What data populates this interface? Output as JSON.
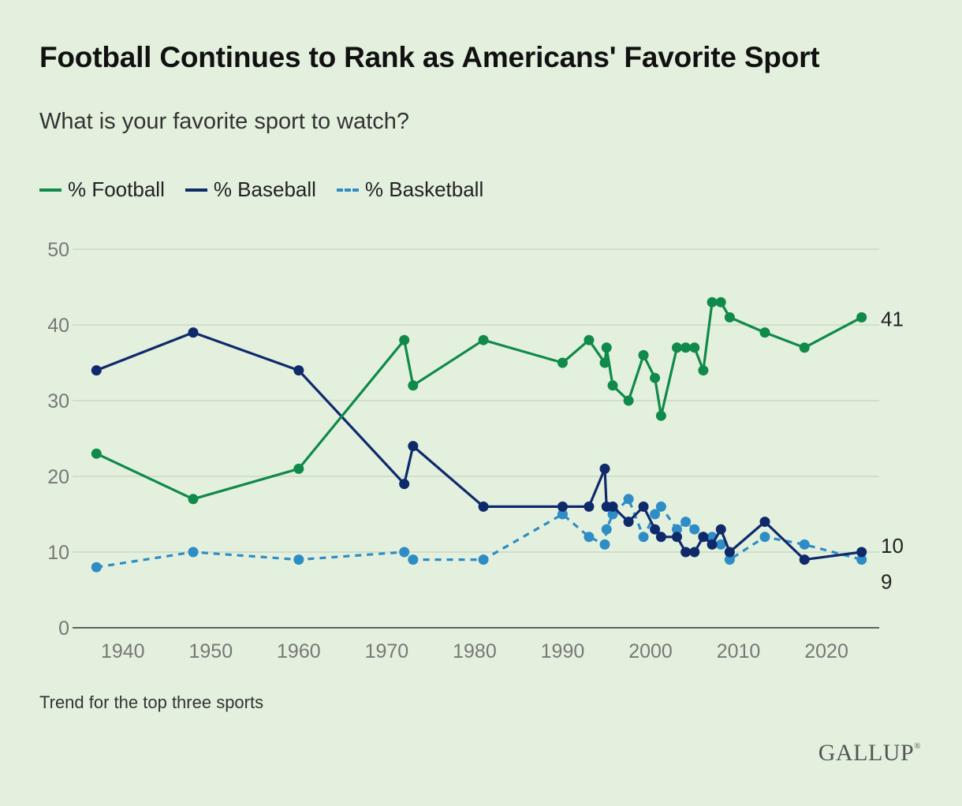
{
  "title": "Football Continues to Rank as Americans' Favorite Sport",
  "subtitle": "What is your favorite sport to watch?",
  "note": "Trend for the top three sports",
  "brand": "GALLUP",
  "brand_mark": "®",
  "colors": {
    "background": "#e4f0de",
    "football": "#0f8a4a",
    "baseball": "#0f2a6b",
    "basketball": "#2e8dc4",
    "grid": "#c9d8c3",
    "axis_text": "#777777"
  },
  "chart_data": {
    "type": "line",
    "title": "",
    "xlabel": "",
    "ylabel": "",
    "xlim": [
      1935,
      2026
    ],
    "ylim": [
      0,
      50
    ],
    "x_ticks": [
      1940,
      1950,
      1960,
      1970,
      1980,
      1990,
      2000,
      2010,
      2020
    ],
    "y_ticks": [
      0,
      10,
      20,
      30,
      40,
      50
    ],
    "grid": true,
    "legend": "top-left",
    "end_labels": [
      "41",
      "10",
      "9"
    ],
    "series": [
      {
        "name": "% Football",
        "key": "football",
        "style": "solid",
        "points": [
          [
            1937,
            23
          ],
          [
            1948,
            17
          ],
          [
            1960,
            21
          ],
          [
            1972,
            38
          ],
          [
            1973,
            32
          ],
          [
            1981,
            38
          ],
          [
            1990,
            35
          ],
          [
            1993,
            38
          ],
          [
            1994.8,
            35
          ],
          [
            1995,
            37
          ],
          [
            1995.7,
            32
          ],
          [
            1997.5,
            30
          ],
          [
            1999.2,
            36
          ],
          [
            2000.5,
            33
          ],
          [
            2001.2,
            28
          ],
          [
            2003,
            37
          ],
          [
            2004,
            37
          ],
          [
            2005,
            37
          ],
          [
            2006,
            34
          ],
          [
            2007,
            43
          ],
          [
            2008,
            43
          ],
          [
            2009,
            41
          ],
          [
            2013,
            39
          ],
          [
            2017.5,
            37
          ],
          [
            2024,
            41
          ]
        ]
      },
      {
        "name": "% Baseball",
        "key": "baseball",
        "style": "solid",
        "points": [
          [
            1937,
            34
          ],
          [
            1948,
            39
          ],
          [
            1960,
            34
          ],
          [
            1972,
            19
          ],
          [
            1973,
            24
          ],
          [
            1981,
            16
          ],
          [
            1990,
            16
          ],
          [
            1993,
            16
          ],
          [
            1994.8,
            21
          ],
          [
            1995,
            16
          ],
          [
            1995.7,
            16
          ],
          [
            1997.5,
            14
          ],
          [
            1999.2,
            16
          ],
          [
            2000.5,
            13
          ],
          [
            2001.2,
            12
          ],
          [
            2003,
            12
          ],
          [
            2004,
            10
          ],
          [
            2005,
            10
          ],
          [
            2006,
            12
          ],
          [
            2007,
            11
          ],
          [
            2008,
            13
          ],
          [
            2009,
            10
          ],
          [
            2013,
            14
          ],
          [
            2017.5,
            9
          ],
          [
            2024,
            10
          ]
        ]
      },
      {
        "name": "% Basketball",
        "key": "basketball",
        "style": "dashed",
        "points": [
          [
            1937,
            8
          ],
          [
            1948,
            10
          ],
          [
            1960,
            9
          ],
          [
            1972,
            10
          ],
          [
            1973,
            9
          ],
          [
            1981,
            9
          ],
          [
            1990,
            15
          ],
          [
            1993,
            12
          ],
          [
            1994.8,
            11
          ],
          [
            1995,
            13
          ],
          [
            1995.7,
            15
          ],
          [
            1997.5,
            17
          ],
          [
            1999.2,
            12
          ],
          [
            2000.5,
            15
          ],
          [
            2001.2,
            16
          ],
          [
            2003,
            13
          ],
          [
            2004,
            14
          ],
          [
            2005,
            13
          ],
          [
            2006,
            12
          ],
          [
            2007,
            12
          ],
          [
            2008,
            11
          ],
          [
            2009,
            9
          ],
          [
            2013,
            12
          ],
          [
            2017.5,
            11
          ],
          [
            2024,
            9
          ]
        ]
      }
    ]
  }
}
